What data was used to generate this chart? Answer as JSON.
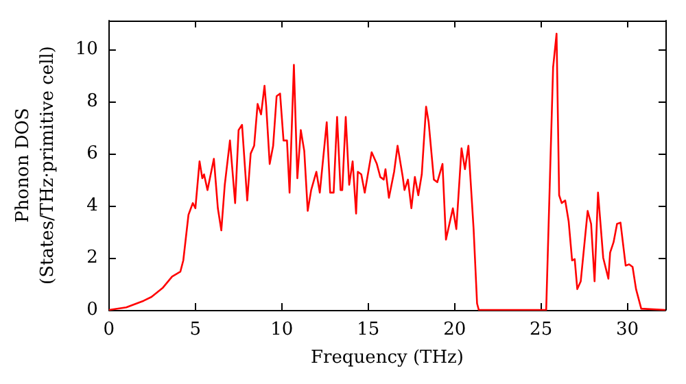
{
  "chart_data": {
    "type": "line",
    "xlabel": "Frequency (THz)",
    "ylabel": "Phonon DOS\n(States/THz·primitive cell)",
    "xlim": [
      0,
      32.2
    ],
    "ylim": [
      0,
      11.1
    ],
    "xticks": [
      0,
      5,
      10,
      15,
      20,
      25,
      30
    ],
    "yticks": [
      0,
      2,
      4,
      6,
      8,
      10
    ],
    "marker": "none",
    "line_style": "solid",
    "series": [
      {
        "color": "#ff0000",
        "x": [
          0,
          1,
          2,
          2.46,
          3.1,
          3.65,
          4.13,
          4.3,
          4.6,
          4.85,
          5.0,
          5.24,
          5.4,
          5.5,
          5.7,
          6.07,
          6.3,
          6.5,
          6.7,
          7.0,
          7.3,
          7.5,
          7.7,
          8.0,
          8.2,
          8.4,
          8.6,
          8.8,
          9.0,
          9.1,
          9.3,
          9.5,
          9.7,
          9.9,
          10.1,
          10.3,
          10.45,
          10.7,
          10.9,
          11.1,
          11.3,
          11.5,
          11.7,
          12.0,
          12.2,
          12.6,
          12.8,
          13.0,
          13.2,
          13.4,
          13.5,
          13.7,
          13.9,
          14.1,
          14.3,
          14.4,
          14.6,
          14.8,
          15.2,
          15.5,
          15.7,
          15.9,
          16.0,
          16.2,
          16.5,
          16.7,
          17.0,
          17.1,
          17.3,
          17.5,
          17.7,
          17.9,
          18.1,
          18.35,
          18.5,
          18.8,
          19.0,
          19.3,
          19.5,
          19.9,
          20.1,
          20.4,
          20.6,
          20.8,
          21.1,
          21.3,
          21.4,
          25.3,
          25.7,
          25.9,
          26.05,
          26.2,
          26.4,
          26.6,
          26.8,
          26.95,
          27.1,
          27.3,
          27.7,
          27.9,
          28.1,
          28.3,
          28.6,
          28.9,
          29.0,
          29.2,
          29.4,
          29.6,
          29.9,
          30.1,
          30.3,
          30.5,
          30.8,
          32.2
        ],
        "values": [
          0,
          0.1,
          0.35,
          0.5,
          0.84,
          1.28,
          1.47,
          1.9,
          3.65,
          4.1,
          3.9,
          5.7,
          5.05,
          5.2,
          4.6,
          5.8,
          3.9,
          3.05,
          4.8,
          6.5,
          4.1,
          6.9,
          7.1,
          4.2,
          6.0,
          6.3,
          7.9,
          7.5,
          8.6,
          7.8,
          5.6,
          6.3,
          8.2,
          8.3,
          6.5,
          6.5,
          4.5,
          9.4,
          5.05,
          6.9,
          6.1,
          3.8,
          4.6,
          5.3,
          4.5,
          7.2,
          4.5,
          4.5,
          7.4,
          4.6,
          4.6,
          7.4,
          4.8,
          5.7,
          3.7,
          5.3,
          5.2,
          4.5,
          6.05,
          5.6,
          5.1,
          5.0,
          5.4,
          4.3,
          5.3,
          6.3,
          5.1,
          4.6,
          5.0,
          3.9,
          5.1,
          4.4,
          5.2,
          7.8,
          7.2,
          5.0,
          4.9,
          5.6,
          2.7,
          3.9,
          3.1,
          6.2,
          5.4,
          6.3,
          3.1,
          0.25,
          0,
          0,
          9.3,
          10.6,
          4.4,
          4.1,
          4.2,
          3.4,
          1.9,
          1.95,
          0.8,
          1.1,
          3.8,
          3.3,
          1.1,
          4.5,
          2.0,
          1.2,
          2.2,
          2.6,
          3.3,
          3.35,
          1.7,
          1.75,
          1.65,
          0.8,
          0.05,
          0
        ]
      }
    ]
  }
}
